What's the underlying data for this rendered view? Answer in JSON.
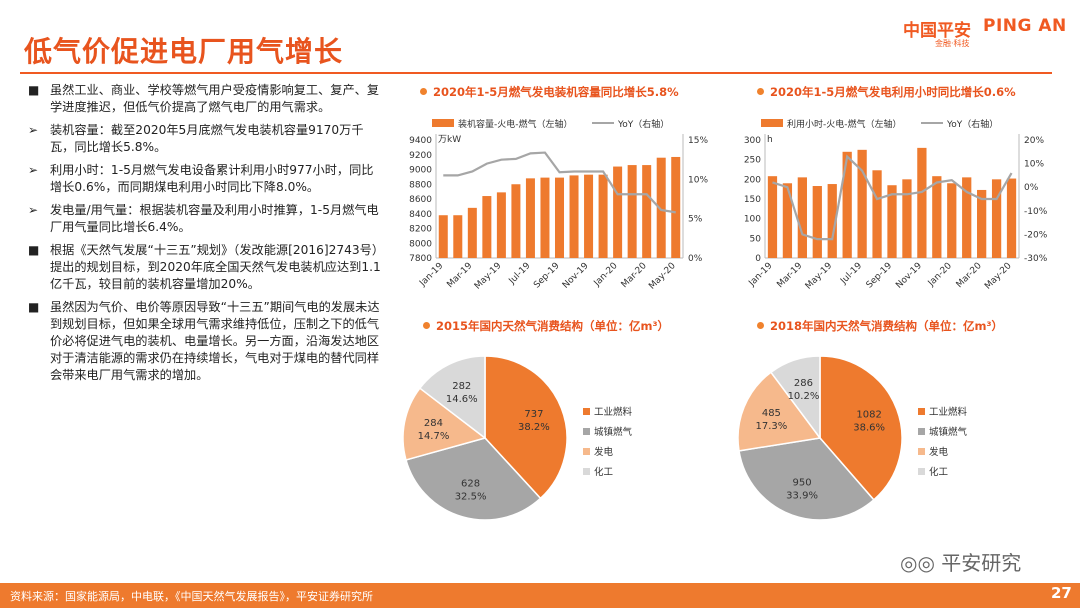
{
  "header": {
    "title": "低气价促进电厂用气增长",
    "logo_cn": "中国平安",
    "logo_en": "PING AN",
    "logo_sub": "金融·科技"
  },
  "bullets": [
    {
      "mark": "■",
      "text": "虽然工业、商业、学校等燃气用户受疫情影响复工、复产、复学进度推迟，但低气价提高了燃气电厂的用气需求。"
    },
    {
      "mark": "➢",
      "text": "装机容量：截至2020年5月底燃气发电装机容量9170万千瓦，同比增长5.8%。"
    },
    {
      "mark": "➢",
      "text": "利用小时：1-5月燃气发电设备累计利用小时977小时，同比增长0.6%，而同期煤电利用小时同比下降8.0%。"
    },
    {
      "mark": "➢",
      "text": "发电量/用气量：根据装机容量及利用小时推算，1-5月燃气电厂用气量同比增长6.4%。"
    },
    {
      "mark": "■",
      "text": "根据《天然气发展“十三五”规划》（发改能源[2016]2743号）提出的规划目标，到2020年底全国天然气发电装机应达到1.1亿千瓦，较目前的装机容量增加20%。"
    },
    {
      "mark": "■",
      "text": "虽然因为气价、电价等原因导致“十三五”期间气电的发展未达到规划目标，但如果全球用气需求维持低位，压制之下的低气价必将促进气电的装机、电量增长。另一方面，沿海发达地区对于清洁能源的需求仍在持续增长，气电对于煤电的替代同样会带来电厂用气需求的增加。"
    }
  ],
  "chart_data": [
    {
      "type": "bar",
      "title": "2020年1-5月燃气发电装机容量同比增长5.8%",
      "legend": [
        "装机容量-火电-燃气（左轴）",
        "YoY（右轴）"
      ],
      "unit": "万kW",
      "categories": [
        "Jan-19",
        "Feb-19",
        "Mar-19",
        "Apr-19",
        "May-19",
        "Jun-19",
        "Jul-19",
        "Aug-19",
        "Sep-19",
        "Oct-19",
        "Nov-19",
        "Dec-19",
        "Jan-20",
        "Feb-20",
        "Mar-20",
        "Apr-20",
        "May-20"
      ],
      "xticks": [
        "Jan-19",
        "Mar-19",
        "May-19",
        "Jul-19",
        "Sep-19",
        "Nov-19",
        "Jan-20",
        "Mar-20",
        "May-20"
      ],
      "values": [
        8380,
        8380,
        8480,
        8640,
        8690,
        8800,
        8880,
        8890,
        8890,
        8920,
        8930,
        8930,
        9040,
        9060,
        9060,
        9160,
        9170
      ],
      "yoy": [
        10.5,
        10.5,
        11,
        12,
        12.5,
        12.6,
        13.3,
        13.4,
        10.9,
        11,
        11,
        11,
        8.1,
        8.1,
        8.1,
        6.1,
        5.8
      ],
      "ylim": [
        7800,
        9400
      ],
      "yticks": [
        7800,
        8000,
        8200,
        8400,
        8600,
        8800,
        9000,
        9200,
        9400
      ],
      "y2lim": [
        0,
        15
      ],
      "y2ticks": [
        "0%",
        "5%",
        "10%",
        "15%"
      ]
    },
    {
      "type": "bar",
      "title": "2020年1-5月燃气发电利用小时同比增长0.6%",
      "legend": [
        "利用小时-火电-燃气（左轴）",
        "YoY（右轴）"
      ],
      "unit": "h",
      "categories": [
        "Jan-19",
        "Feb-19",
        "Mar-19",
        "Apr-19",
        "May-19",
        "Jun-19",
        "Jul-19",
        "Aug-19",
        "Sep-19",
        "Oct-19",
        "Nov-19",
        "Dec-19",
        "Jan-20",
        "Feb-20",
        "Mar-20",
        "Apr-20",
        "May-20"
      ],
      "xticks": [
        "Jan-19",
        "Mar-19",
        "May-19",
        "Jul-19",
        "Sep-19",
        "Nov-19",
        "Jan-20",
        "Mar-20",
        "May-20"
      ],
      "values": [
        208,
        190,
        205,
        183,
        188,
        270,
        275,
        223,
        185,
        200,
        280,
        208,
        190,
        205,
        173,
        200,
        202
      ],
      "yoy": [
        2,
        0,
        -20,
        -22,
        -22,
        13,
        7,
        -5,
        -3,
        -3,
        -2,
        2,
        3,
        -2,
        -5,
        -5,
        6
      ],
      "ylim": [
        0,
        300
      ],
      "yticks": [
        0,
        50,
        100,
        150,
        200,
        250,
        300
      ],
      "y2lim": [
        -30,
        20
      ],
      "y2ticks": [
        "-30%",
        "-20%",
        "-10%",
        "0%",
        "10%",
        "20%"
      ]
    },
    {
      "type": "pie",
      "title": "2015年国内天然气消费结构（单位：亿m³）",
      "slices": [
        {
          "name": "工业燃料",
          "value": 737,
          "pct": "38.2%"
        },
        {
          "name": "城镇燃气",
          "value": 628,
          "pct": "32.5%"
        },
        {
          "name": "发电",
          "value": 284,
          "pct": "14.7%"
        },
        {
          "name": "化工",
          "value": 282,
          "pct": "14.6%"
        }
      ]
    },
    {
      "type": "pie",
      "title": "2018年国内天然气消费结构（单位：亿m³）",
      "slices": [
        {
          "name": "工业燃料",
          "value": 1082,
          "pct": "38.6%"
        },
        {
          "name": "城镇燃气",
          "value": 950,
          "pct": "33.9%"
        },
        {
          "name": "发电",
          "value": 485,
          "pct": "17.3%"
        },
        {
          "name": "化工",
          "value": 286,
          "pct": "10.2%"
        }
      ]
    }
  ],
  "colors": {
    "accent": "#e8541e",
    "bar": "#ee7a2e",
    "line": "#a6a6a6",
    "pie": [
      "#ee7a2e",
      "#a6a6a6",
      "#f6b98c",
      "#d9d9d9"
    ]
  },
  "footer": {
    "source": "资料来源：国家能源局，中电联，《中国天然气发展报告》，平安证券研究所",
    "page": "27",
    "watermark": "平安研究"
  }
}
